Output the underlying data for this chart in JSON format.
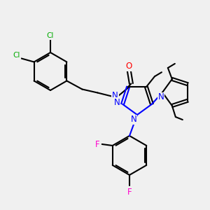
{
  "bg_color": "#f0f0f0",
  "atom_colors": {
    "C": "#000000",
    "N": "#0000ff",
    "O": "#ff0000",
    "F": "#ff00cc",
    "Cl": "#00aa00",
    "H": "#000000"
  },
  "figsize": [
    3.0,
    3.0
  ],
  "dpi": 100,
  "lw": 1.5,
  "fs": 7.5
}
